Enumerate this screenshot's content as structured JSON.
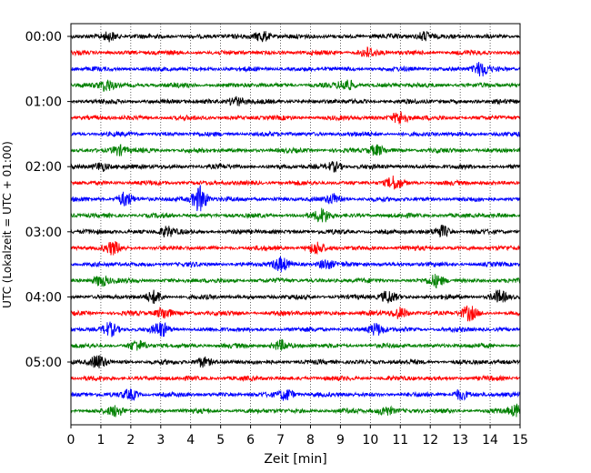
{
  "chart_data": {
    "type": "line",
    "title": "",
    "xlabel": "Zeit  [min]",
    "ylabel": "UTC (Lokalzeit = UTC + 01:00)",
    "xlim": [
      0,
      15
    ],
    "x_ticks": [
      "0",
      "1",
      "2",
      "3",
      "4",
      "5",
      "6",
      "7",
      "8",
      "9",
      "10",
      "11",
      "12",
      "13",
      "14",
      "15"
    ],
    "y_tick_labels": [
      "00:00",
      "01:00",
      "02:00",
      "03:00",
      "04:00",
      "05:00"
    ],
    "grid": "vertical dotted lines at each minute",
    "trace_interval_minutes": 15,
    "trace_colors": [
      "#000000",
      "#ff0000",
      "#0000ff",
      "#008000"
    ],
    "trace_count": 24,
    "series": [
      {
        "start": "00:00",
        "color": "#000000",
        "events": [
          {
            "t": 1.3,
            "amp": 5
          },
          {
            "t": 6.4,
            "amp": 6
          },
          {
            "t": 11.8,
            "amp": 5
          }
        ]
      },
      {
        "start": "00:15",
        "color": "#ff0000",
        "events": [
          {
            "t": 9.9,
            "amp": 5
          }
        ]
      },
      {
        "start": "00:30",
        "color": "#0000ff",
        "events": [
          {
            "t": 13.7,
            "amp": 7
          }
        ]
      },
      {
        "start": "00:45",
        "color": "#008000",
        "events": [
          {
            "t": 1.2,
            "amp": 6
          },
          {
            "t": 9.2,
            "amp": 6
          }
        ]
      },
      {
        "start": "01:00",
        "color": "#000000",
        "events": [
          {
            "t": 5.5,
            "amp": 5
          }
        ]
      },
      {
        "start": "01:15",
        "color": "#ff0000",
        "events": [
          {
            "t": 11.0,
            "amp": 7
          }
        ]
      },
      {
        "start": "01:30",
        "color": "#0000ff",
        "events": []
      },
      {
        "start": "01:45",
        "color": "#008000",
        "events": [
          {
            "t": 1.6,
            "amp": 5
          },
          {
            "t": 10.2,
            "amp": 5
          }
        ]
      },
      {
        "start": "02:00",
        "color": "#000000",
        "events": [
          {
            "t": 1.0,
            "amp": 5
          },
          {
            "t": 8.8,
            "amp": 5
          }
        ]
      },
      {
        "start": "02:15",
        "color": "#ff0000",
        "events": [
          {
            "t": 10.8,
            "amp": 6
          }
        ]
      },
      {
        "start": "02:30",
        "color": "#0000ff",
        "events": [
          {
            "t": 1.8,
            "amp": 7
          },
          {
            "t": 4.3,
            "amp": 14
          },
          {
            "t": 8.8,
            "amp": 5
          }
        ]
      },
      {
        "start": "02:45",
        "color": "#008000",
        "events": [
          {
            "t": 8.4,
            "amp": 7
          }
        ]
      },
      {
        "start": "03:00",
        "color": "#000000",
        "events": [
          {
            "t": 3.2,
            "amp": 5
          },
          {
            "t": 12.4,
            "amp": 6
          }
        ]
      },
      {
        "start": "03:15",
        "color": "#ff0000",
        "events": [
          {
            "t": 1.4,
            "amp": 6
          },
          {
            "t": 8.2,
            "amp": 6
          }
        ]
      },
      {
        "start": "03:30",
        "color": "#0000ff",
        "events": [
          {
            "t": 7.0,
            "amp": 7
          },
          {
            "t": 8.5,
            "amp": 5
          }
        ]
      },
      {
        "start": "03:45",
        "color": "#008000",
        "events": [
          {
            "t": 1.0,
            "amp": 6
          },
          {
            "t": 12.2,
            "amp": 6
          }
        ]
      },
      {
        "start": "04:00",
        "color": "#000000",
        "events": [
          {
            "t": 2.8,
            "amp": 6
          },
          {
            "t": 10.6,
            "amp": 6
          },
          {
            "t": 14.3,
            "amp": 6
          }
        ]
      },
      {
        "start": "04:15",
        "color": "#ff0000",
        "events": [
          {
            "t": 3.1,
            "amp": 6
          },
          {
            "t": 11.0,
            "amp": 6
          },
          {
            "t": 13.3,
            "amp": 7
          }
        ]
      },
      {
        "start": "04:30",
        "color": "#0000ff",
        "events": [
          {
            "t": 1.3,
            "amp": 7
          },
          {
            "t": 3.0,
            "amp": 7
          },
          {
            "t": 10.2,
            "amp": 6
          }
        ]
      },
      {
        "start": "04:45",
        "color": "#008000",
        "events": [
          {
            "t": 2.2,
            "amp": 5
          },
          {
            "t": 7.0,
            "amp": 5
          }
        ]
      },
      {
        "start": "05:00",
        "color": "#000000",
        "events": [
          {
            "t": 0.9,
            "amp": 7
          },
          {
            "t": 4.4,
            "amp": 5
          }
        ]
      },
      {
        "start": "05:15",
        "color": "#ff0000",
        "events": []
      },
      {
        "start": "05:30",
        "color": "#0000ff",
        "events": [
          {
            "t": 2.0,
            "amp": 5
          },
          {
            "t": 7.2,
            "amp": 6
          },
          {
            "t": 13.0,
            "amp": 5
          }
        ]
      },
      {
        "start": "05:45",
        "color": "#008000",
        "events": [
          {
            "t": 1.5,
            "amp": 5
          },
          {
            "t": 10.5,
            "amp": 5
          },
          {
            "t": 14.9,
            "amp": 6
          }
        ]
      }
    ]
  }
}
